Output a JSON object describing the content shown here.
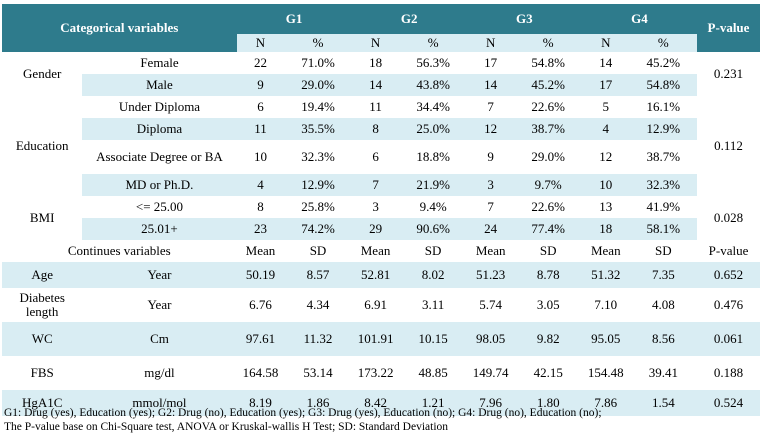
{
  "header": {
    "categorical": "Categorical variables",
    "groups": [
      "G1",
      "G2",
      "G3",
      "G4"
    ],
    "pvalue": "P-value",
    "n": "N",
    "pct": "%"
  },
  "cat_rows": [
    {
      "cells": [
        "22",
        "71.0%",
        "18",
        "56.3%",
        "17",
        "54.8%",
        "14",
        "45.2%"
      ],
      "level": "Female"
    },
    {
      "cells": [
        "9",
        "29.0%",
        "14",
        "43.8%",
        "14",
        "45.2%",
        "17",
        "54.8%"
      ],
      "level": "Male"
    },
    {
      "cells": [
        "6",
        "19.4%",
        "11",
        "34.4%",
        "7",
        "22.6%",
        "5",
        "16.1%"
      ],
      "level": "Under Diploma"
    },
    {
      "cells": [
        "11",
        "35.5%",
        "8",
        "25.0%",
        "12",
        "38.7%",
        "4",
        "12.9%"
      ],
      "level": "Diploma"
    },
    {
      "cells": [
        "10",
        "32.3%",
        "6",
        "18.8%",
        "9",
        "29.0%",
        "12",
        "38.7%"
      ],
      "level": "Associate Degree or BA"
    },
    {
      "cells": [
        "4",
        "12.9%",
        "7",
        "21.9%",
        "3",
        "9.7%",
        "10",
        "32.3%"
      ],
      "level": "MD or Ph.D."
    },
    {
      "cells": [
        "8",
        "25.8%",
        "3",
        "9.4%",
        "7",
        "22.6%",
        "13",
        "41.9%"
      ],
      "level": "<= 25.00"
    },
    {
      "cells": [
        "23",
        "74.2%",
        "29",
        "90.6%",
        "24",
        "77.4%",
        "18",
        "58.1%"
      ],
      "level": "25.01+"
    }
  ],
  "cat_groups": {
    "gender": {
      "label": "Gender",
      "p": "0.231"
    },
    "education": {
      "label": "Education",
      "p": "0.112"
    },
    "bmi": {
      "label": "BMI",
      "p": "0.028"
    }
  },
  "cont_header": {
    "label": "Continues variables",
    "mean": "Mean",
    "sd": "SD",
    "pvalue": "P-value"
  },
  "cont_rows": [
    {
      "var": "Age",
      "unit": "Year",
      "cells": [
        "50.19",
        "8.57",
        "52.81",
        "8.02",
        "51.23",
        "8.78",
        "51.32",
        "7.35"
      ],
      "p": "0.652"
    },
    {
      "var": "Diabetes length",
      "unit": "Year",
      "cells": [
        "6.76",
        "4.34",
        "6.91",
        "3.11",
        "5.74",
        "3.05",
        "7.10",
        "4.08"
      ],
      "p": "0.476"
    },
    {
      "var": "WC",
      "unit": "Cm",
      "cells": [
        "97.61",
        "11.32",
        "101.91",
        "10.15",
        "98.05",
        "9.82",
        "95.05",
        "8.56"
      ],
      "p": "0.061"
    },
    {
      "var": "FBS",
      "unit": "mg/dl",
      "cells": [
        "164.58",
        "53.14",
        "173.22",
        "48.85",
        "149.74",
        "42.15",
        "154.48",
        "39.41"
      ],
      "p": "0.188"
    },
    {
      "var": "HgA1C",
      "unit": "mmol/mol",
      "cells": [
        "8.19",
        "1.86",
        "8.42",
        "1.21",
        "7.96",
        "1.80",
        "7.86",
        "1.54"
      ],
      "p": "0.524"
    }
  ],
  "footnote": {
    "line1": "G1: Drug (yes), Education (yes); G2: Drug (no), Education (yes); G3: Drug (yes), Education (no); G4: Drug (no), Education (no);",
    "line2": "The P-value base on Chi-Square test, ANOVA or Kruskal-wallis H Test; SD: Standard Deviation"
  }
}
